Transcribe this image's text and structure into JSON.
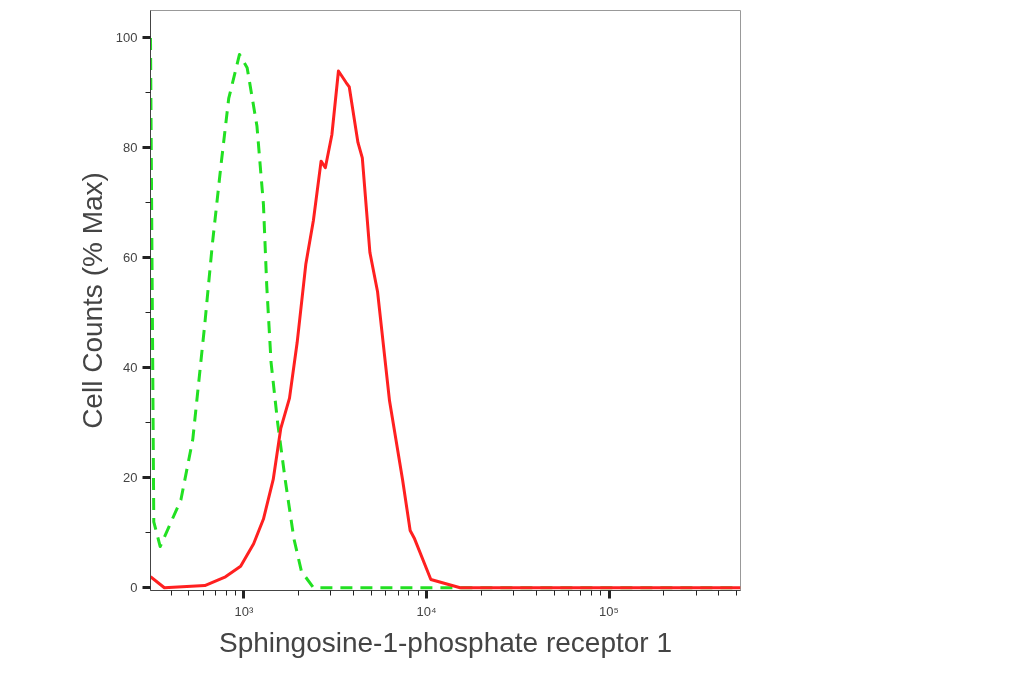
{
  "chart_data": {
    "type": "line",
    "xlabel": "Sphingosine-1-phosphate receptor 1",
    "ylabel": "Cell Counts (% Max)",
    "log": "x",
    "grid": false,
    "marker": "none",
    "xlim": [
      308,
      525000
    ],
    "ylim": [
      -0.5,
      105
    ],
    "xticks": [
      {
        "value": 1000,
        "label": "10³"
      },
      {
        "value": 10000,
        "label": "10⁴"
      },
      {
        "value": 100000,
        "label": "10⁵"
      }
    ],
    "yticks": [
      0,
      20,
      40,
      60,
      80,
      100
    ],
    "series": [
      {
        "color": "#22e022",
        "line_style": "dashed",
        "x": [
          308,
          321,
          348,
          452,
          525,
          611,
          672,
          750,
          826,
          946,
          1042,
          1179,
          1280,
          1334,
          1409,
          1531,
          1683,
          1880,
          2066,
          2403,
          10000,
          525000
        ],
        "values": [
          100,
          12,
          7.5,
          16,
          27,
          48,
          62.5,
          77,
          89,
          97,
          94.6,
          84,
          69.7,
          55,
          41,
          30,
          19.7,
          8.9,
          3,
          0,
          0,
          0
        ]
      },
      {
        "color": "#ff2020",
        "line_style": "solid",
        "x": [
          308,
          367,
          611,
          793,
          960,
          1131,
          1280,
          1448,
          1593,
          1778,
          1958,
          2185,
          2403,
          2648,
          2794,
          3034,
          3296,
          3630,
          3778,
          4214,
          4453,
          4900,
          5395,
          6277,
          7396,
          8143,
          8610,
          10570,
          15300,
          525000
        ],
        "values": [
          2,
          0,
          0.4,
          2,
          3.9,
          8,
          12.5,
          19.7,
          29,
          34.5,
          44.6,
          58.9,
          66.8,
          77.6,
          76.4,
          82.4,
          94,
          91.9,
          91.1,
          81,
          78.2,
          61,
          53.9,
          34,
          19.7,
          10.4,
          8.9,
          1.5,
          0,
          0
        ]
      }
    ]
  }
}
